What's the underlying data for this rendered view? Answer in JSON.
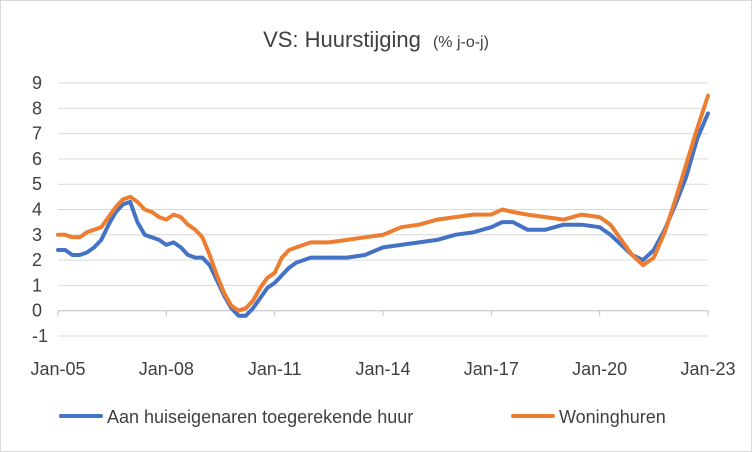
{
  "chart_data": {
    "type": "line",
    "title": "VS: Huurstijging",
    "subtitle": "(% j-o-j)",
    "xlabel": "",
    "ylabel": "",
    "ylim": [
      -1,
      9
    ],
    "yticks": [
      -1,
      0,
      1,
      2,
      3,
      4,
      5,
      6,
      7,
      8,
      9
    ],
    "xlim": [
      2005.0,
      2023.0
    ],
    "xtick_labels": [
      "Jan-05",
      "Jan-08",
      "Jan-11",
      "Jan-14",
      "Jan-17",
      "Jan-20",
      "Jan-23"
    ],
    "xtick_positions": [
      2005,
      2008,
      2011,
      2014,
      2017,
      2020,
      2023
    ],
    "grid": "horizontal",
    "legend_position": "bottom",
    "series": [
      {
        "name": "Aan huiseigenaren toegerekende huur",
        "color": "#4472C4",
        "x": [
          2005.0,
          2005.2,
          2005.4,
          2005.6,
          2005.8,
          2006.0,
          2006.2,
          2006.4,
          2006.6,
          2006.8,
          2007.0,
          2007.2,
          2007.4,
          2007.6,
          2007.8,
          2008.0,
          2008.2,
          2008.4,
          2008.6,
          2008.8,
          2009.0,
          2009.2,
          2009.4,
          2009.6,
          2009.8,
          2010.0,
          2010.2,
          2010.4,
          2010.6,
          2010.8,
          2011.0,
          2011.2,
          2011.4,
          2011.6,
          2011.8,
          2012.0,
          2012.5,
          2013.0,
          2013.5,
          2014.0,
          2014.5,
          2015.0,
          2015.5,
          2016.0,
          2016.5,
          2017.0,
          2017.3,
          2017.6,
          2018.0,
          2018.5,
          2019.0,
          2019.5,
          2020.0,
          2020.3,
          2020.6,
          2020.9,
          2021.2,
          2021.5,
          2021.8,
          2022.1,
          2022.4,
          2022.7,
          2023.0
        ],
        "values": [
          2.4,
          2.4,
          2.2,
          2.2,
          2.3,
          2.5,
          2.8,
          3.4,
          3.9,
          4.2,
          4.3,
          3.5,
          3.0,
          2.9,
          2.8,
          2.6,
          2.7,
          2.5,
          2.2,
          2.1,
          2.1,
          1.8,
          1.2,
          0.6,
          0.1,
          -0.2,
          -0.2,
          0.1,
          0.5,
          0.9,
          1.1,
          1.4,
          1.7,
          1.9,
          2.0,
          2.1,
          2.1,
          2.1,
          2.2,
          2.5,
          2.6,
          2.7,
          2.8,
          3.0,
          3.1,
          3.3,
          3.5,
          3.5,
          3.2,
          3.2,
          3.4,
          3.4,
          3.3,
          3.0,
          2.6,
          2.2,
          2.0,
          2.4,
          3.2,
          4.2,
          5.3,
          6.8,
          7.8
        ]
      },
      {
        "name": "Woninghuren",
        "color": "#ED7D31",
        "x": [
          2005.0,
          2005.2,
          2005.4,
          2005.6,
          2005.8,
          2006.0,
          2006.2,
          2006.4,
          2006.6,
          2006.8,
          2007.0,
          2007.2,
          2007.4,
          2007.6,
          2007.8,
          2008.0,
          2008.2,
          2008.4,
          2008.6,
          2008.8,
          2009.0,
          2009.2,
          2009.4,
          2009.6,
          2009.8,
          2010.0,
          2010.2,
          2010.4,
          2010.6,
          2010.8,
          2011.0,
          2011.2,
          2011.4,
          2011.6,
          2011.8,
          2012.0,
          2012.5,
          2013.0,
          2013.5,
          2014.0,
          2014.5,
          2015.0,
          2015.5,
          2016.0,
          2016.5,
          2017.0,
          2017.3,
          2017.6,
          2018.0,
          2018.5,
          2019.0,
          2019.5,
          2020.0,
          2020.3,
          2020.6,
          2020.9,
          2021.2,
          2021.5,
          2021.8,
          2022.1,
          2022.4,
          2022.7,
          2023.0
        ],
        "values": [
          3.0,
          3.0,
          2.9,
          2.9,
          3.1,
          3.2,
          3.3,
          3.7,
          4.1,
          4.4,
          4.5,
          4.3,
          4.0,
          3.9,
          3.7,
          3.6,
          3.8,
          3.7,
          3.4,
          3.2,
          2.9,
          2.2,
          1.4,
          0.7,
          0.2,
          0.0,
          0.1,
          0.4,
          0.9,
          1.3,
          1.5,
          2.1,
          2.4,
          2.5,
          2.6,
          2.7,
          2.7,
          2.8,
          2.9,
          3.0,
          3.3,
          3.4,
          3.6,
          3.7,
          3.8,
          3.8,
          4.0,
          3.9,
          3.8,
          3.7,
          3.6,
          3.8,
          3.7,
          3.4,
          2.8,
          2.2,
          1.8,
          2.1,
          3.1,
          4.4,
          5.8,
          7.2,
          8.5
        ]
      }
    ]
  }
}
